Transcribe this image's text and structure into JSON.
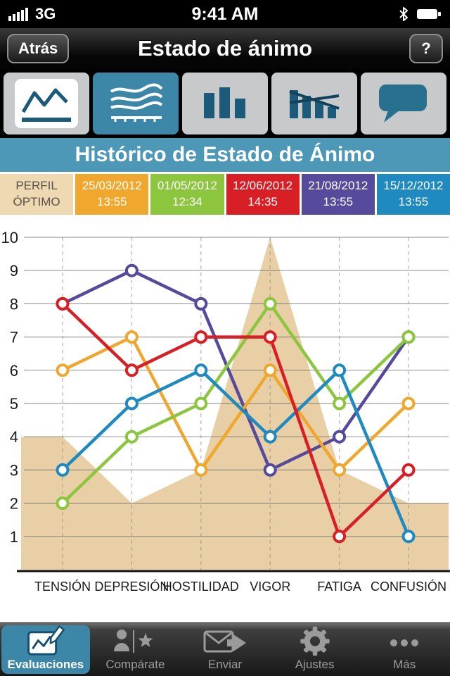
{
  "status_bar": {
    "carrier": "3G",
    "time": "9:41 AM"
  },
  "nav": {
    "back_label": "Atrás",
    "title": "Estado de ánimo",
    "help_label": "?"
  },
  "tabs": [
    {
      "name": "line-chart",
      "selected": false
    },
    {
      "name": "multi-line-chart",
      "selected": true
    },
    {
      "name": "bar-chart",
      "selected": false
    },
    {
      "name": "bar-line-chart",
      "selected": false
    },
    {
      "name": "comments",
      "selected": false
    }
  ],
  "section": {
    "title": "Histórico de Estado de Ánimo"
  },
  "legend": [
    {
      "line1": "PERFIL",
      "line2": "ÓPTIMO",
      "bg": "#eed9b2",
      "fg": "#5a5148"
    },
    {
      "line1": "25/03/2012",
      "line2": "13:55",
      "bg": "#f0a72e",
      "fg": "#ffffff"
    },
    {
      "line1": "01/05/2012",
      "line2": "12:34",
      "bg": "#8cc63f",
      "fg": "#ffffff"
    },
    {
      "line1": "12/06/2012",
      "line2": "14:35",
      "bg": "#d91f26",
      "fg": "#ffffff"
    },
    {
      "line1": "21/08/2012",
      "line2": "13:55",
      "bg": "#564a9c",
      "fg": "#ffffff"
    },
    {
      "line1": "15/12/2012",
      "line2": "13:55",
      "bg": "#1f8ac0",
      "fg": "#ffffff"
    }
  ],
  "chart_data": {
    "type": "line",
    "categories": [
      "TENSIÓN",
      "DEPRESIÓN",
      "HOSTILIDAD",
      "VIGOR",
      "FATIGA",
      "CONFUSIÓN"
    ],
    "ylim": [
      0,
      10
    ],
    "yticks": [
      1,
      2,
      3,
      4,
      5,
      6,
      7,
      8,
      9,
      10
    ],
    "grid": true,
    "area_series": {
      "name": "Perfil óptimo",
      "color": "#e8cfa5",
      "values": [
        4,
        2,
        3,
        10,
        3,
        2
      ],
      "extend_left": 4,
      "extend_right": 2
    },
    "series": [
      {
        "name": "25/03/2012 13:55",
        "color": "#f0a72e",
        "values": [
          6,
          7,
          3,
          6,
          3,
          5
        ]
      },
      {
        "name": "01/05/2012 12:34",
        "color": "#8cc63f",
        "values": [
          2,
          4,
          5,
          8,
          5,
          7
        ]
      },
      {
        "name": "12/06/2012 14:35",
        "color": "#d91f26",
        "values": [
          8,
          6,
          7,
          7,
          1,
          3
        ]
      },
      {
        "name": "21/08/2012 13:55",
        "color": "#564a9c",
        "values": [
          8,
          9,
          8,
          3,
          4,
          7
        ]
      },
      {
        "name": "15/12/2012 13:55",
        "color": "#1f8ac0",
        "values": [
          3,
          5,
          6,
          4,
          6,
          1
        ]
      }
    ],
    "draw_order": [
      3,
      0,
      1,
      4,
      2
    ],
    "legend_position": "top"
  },
  "toolbar": [
    {
      "label": "Evaluaciones",
      "icon": "evaluations-icon",
      "selected": true
    },
    {
      "label": "Compárate",
      "icon": "compare-icon",
      "selected": false
    },
    {
      "label": "Enviar",
      "icon": "send-icon",
      "selected": false
    },
    {
      "label": "Ajustes",
      "icon": "settings-icon",
      "selected": false
    },
    {
      "label": "Más",
      "icon": "more-icon",
      "selected": false
    }
  ]
}
